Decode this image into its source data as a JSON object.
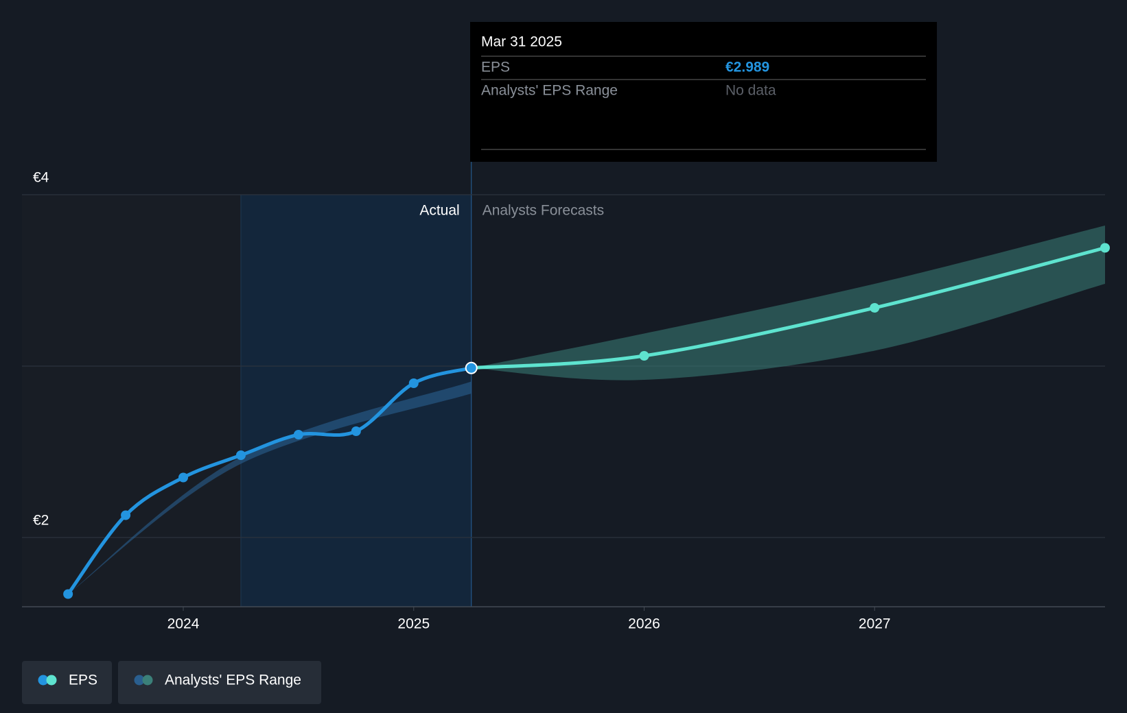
{
  "chart_data": {
    "type": "line",
    "xlim": [
      2023.3,
      2028
    ],
    "xticks": [
      2024,
      2025,
      2026,
      2027
    ],
    "ylim": [
      1.596,
      4
    ],
    "yticks": [
      {
        "value": 2,
        "label": "€2"
      },
      {
        "value": 4,
        "label": "€4"
      }
    ],
    "gridlines": [
      2,
      3,
      4
    ],
    "highlight_range": [
      2024.25,
      2025.25
    ],
    "actual_label": "Actual",
    "forecast_label": "Analysts Forecasts",
    "series": [
      {
        "name": "EPS",
        "color": "#2394df",
        "forecast_color": "#5ee3cf",
        "x": [
          2023.5,
          2023.75,
          2024,
          2024.25,
          2024.5,
          2024.75,
          2025,
          2025.25,
          2026,
          2027,
          2028
        ],
        "values": [
          1.67,
          2.13,
          2.35,
          2.48,
          2.6,
          2.62,
          2.9,
          2.989,
          3.06,
          3.34,
          3.69
        ]
      }
    ],
    "range": {
      "name": "Analysts' EPS Range",
      "colors": [
        "#2a5f8f",
        "#3b8079"
      ],
      "segments": [
        {
          "x": [
            2023.5,
            2024.25,
            2025.25
          ],
          "low": [
            1.67,
            2.43,
            2.84
          ],
          "high": [
            1.67,
            2.47,
            2.91
          ]
        },
        {
          "x": [
            2025.25,
            2026,
            2027,
            2028
          ],
          "low": [
            2.989,
            2.92,
            3.09,
            3.48
          ],
          "high": [
            2.989,
            3.19,
            3.48,
            3.82
          ]
        }
      ]
    },
    "tooltip": {
      "title": "Mar 31 2025",
      "rows": [
        {
          "label": "EPS",
          "value": 2.989,
          "value_label": "€2.989"
        },
        {
          "label": "Analysts' EPS Range",
          "value_label": "No data"
        }
      ]
    }
  }
}
